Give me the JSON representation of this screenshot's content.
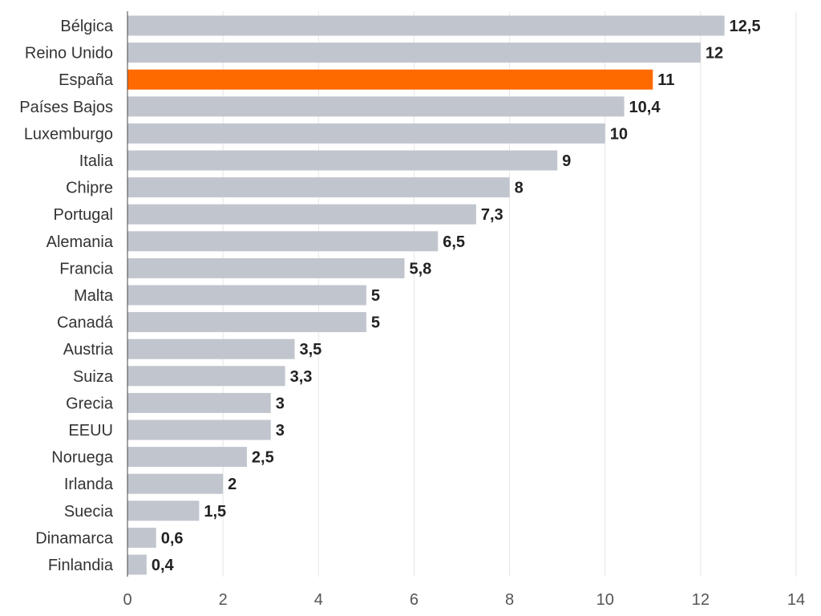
{
  "chart_data": {
    "type": "bar",
    "orientation": "horizontal",
    "categories": [
      "Bélgica",
      "Reino Unido",
      "España",
      "Países Bajos",
      "Luxemburgo",
      "Italia",
      "Chipre",
      "Portugal",
      "Alemania",
      "Francia",
      "Malta",
      "Canadá",
      "Austria",
      "Suiza",
      "Grecia",
      "EEUU",
      "Noruega",
      "Irlanda",
      "Suecia",
      "Dinamarca",
      "Finlandia"
    ],
    "values": [
      12.5,
      12,
      11,
      10.4,
      10,
      9,
      8,
      7.3,
      6.5,
      5.8,
      5,
      5,
      3.5,
      3.3,
      3,
      3,
      2.5,
      2,
      1.5,
      0.6,
      0.4
    ],
    "value_labels": [
      "12,5",
      "12",
      "11",
      "10,4",
      "10",
      "9",
      "8",
      "7,3",
      "6,5",
      "5,8",
      "5",
      "5",
      "3,5",
      "3,3",
      "3",
      "3",
      "2,5",
      "2",
      "1,5",
      "0,6",
      "0,4"
    ],
    "highlight_category": "España",
    "colors": {
      "bar": "#c1c5ce",
      "highlight": "#ff6a00"
    },
    "xlim": [
      0,
      14
    ],
    "xticks": [
      0,
      2,
      4,
      6,
      8,
      10,
      12,
      14
    ],
    "xlabel": "",
    "ylabel": "",
    "grid": true
  }
}
